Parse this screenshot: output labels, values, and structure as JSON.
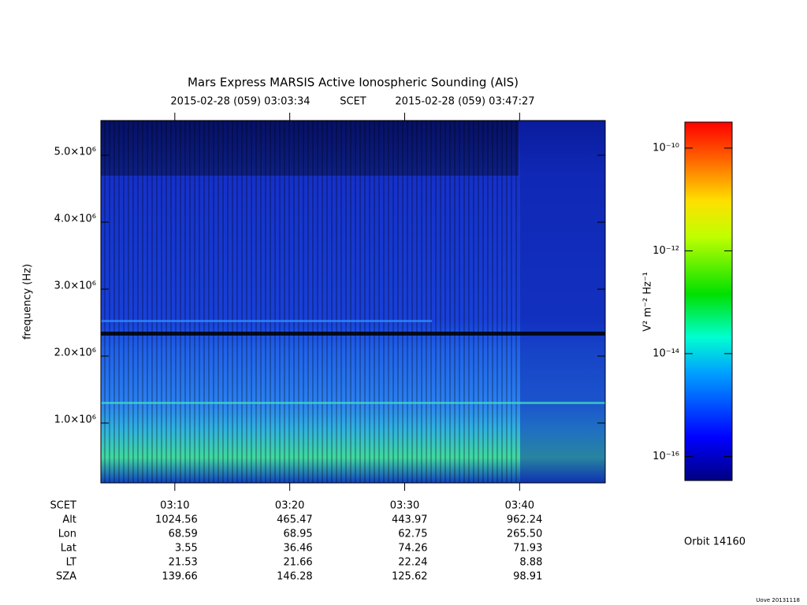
{
  "chart_data": {
    "type": "spectrogram",
    "title": "Mars Express MARSIS Active Ionospheric Sounding (AIS)",
    "start_time": "2015-02-28 (059) 03:03:34",
    "time_system": "SCET",
    "end_time": "2015-02-28 (059) 03:47:27",
    "ylabel": "frequency (Hz)",
    "ylim": [
      106000,
      5518000
    ],
    "yticks": [
      {
        "value": 1000000,
        "label": "1.0×10⁶"
      },
      {
        "value": 2000000,
        "label": "2.0×10⁶"
      },
      {
        "value": 3000000,
        "label": "3.0×10⁶"
      },
      {
        "value": 4000000,
        "label": "4.0×10⁶"
      },
      {
        "value": 5000000,
        "label": "5.0×10⁶"
      }
    ],
    "xlabel": "SCET",
    "xticks": [
      "03:10",
      "03:20",
      "03:30",
      "03:40"
    ],
    "colorbar": {
      "label": "V² m⁻² Hz⁻¹",
      "scale": "log",
      "zlim": [
        3.4e-17,
        3.2e-10
      ],
      "zticks": [
        {
          "value": 1e-10,
          "label": "10⁻¹⁰"
        },
        {
          "value": 1e-12,
          "label": "10⁻¹²"
        },
        {
          "value": 1e-14,
          "label": "10⁻¹⁴"
        },
        {
          "value": 1e-16,
          "label": "10⁻¹⁶"
        }
      ]
    },
    "ephemeris": {
      "row_labels": [
        "Alt",
        "Lon",
        "Lat",
        "LT",
        "SZA"
      ],
      "rows": [
        [
          "1024.56",
          "465.47",
          "443.97",
          "962.24"
        ],
        [
          "68.59",
          "68.95",
          "62.75",
          "265.50"
        ],
        [
          "3.55",
          "36.46",
          "74.26",
          "71.93"
        ],
        [
          "21.53",
          "21.66",
          "22.24",
          "8.88"
        ],
        [
          "139.66",
          "146.28",
          "125.62",
          "98.91"
        ]
      ]
    },
    "orbit": "Orbit 14160",
    "credit": "Uove 20131118"
  }
}
